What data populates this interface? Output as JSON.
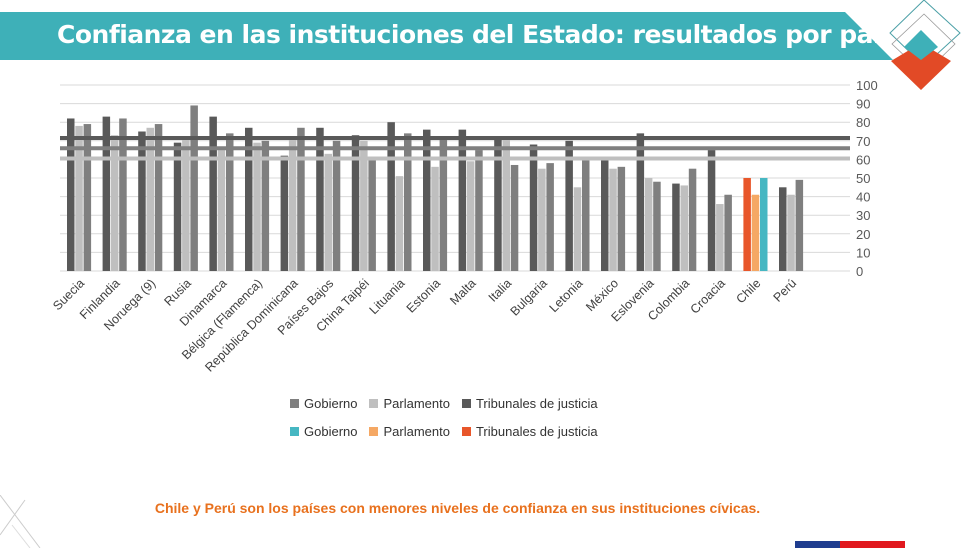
{
  "header": {
    "title": "Confianza en las instituciones del Estado: resultados por país (%)"
  },
  "note": "Chile y Perú son los países con menores niveles de confianza en sus instituciones cívicas.",
  "colors": {
    "banner": "#3eb0b8",
    "accent_red": "#e24a26",
    "note": "#e8711e",
    "tribunales": "#595959",
    "parlamento": "#bfbfbf",
    "gobierno": "#7f7f7f",
    "chile_tribunales": "#e8562a",
    "chile_parlamento": "#f5a864",
    "chile_gobierno": "#46b7c2"
  },
  "legend": {
    "row1": [
      {
        "label": "Gobierno",
        "color": "#7f7f7f"
      },
      {
        "label": "Parlamento",
        "color": "#bfbfbf"
      },
      {
        "label": "Tribunales de justicia",
        "color": "#595959"
      }
    ],
    "row2": [
      {
        "label": "Gobierno",
        "color": "#46b7c2"
      },
      {
        "label": "Parlamento",
        "color": "#f5a864"
      },
      {
        "label": "Tribunales de justicia",
        "color": "#e8562a"
      }
    ]
  },
  "chart_data": {
    "type": "bar",
    "ylim": [
      0,
      100
    ],
    "yticks": [
      0,
      10,
      20,
      30,
      40,
      50,
      60,
      70,
      80,
      90,
      100
    ],
    "y_axis_position": "right",
    "grid": true,
    "legend_placement": "bottom",
    "categories": [
      "Suecia",
      "Finlandia",
      "Noruega (9)",
      "Rusia",
      "Dinamarca",
      "Bélgica (Flamenca)",
      "República Dominicana",
      "Países Bajos",
      "China Taipéi",
      "Lituania",
      "Estonia",
      "Malta",
      "Italia",
      "Bulgaria",
      "Letonia",
      "México",
      "Eslovenia",
      "Colombia",
      "Croacia",
      "Chile",
      "Perú"
    ],
    "highlight_category": "Chile",
    "series": [
      {
        "name": "Tribunales de justicia",
        "values": [
          82,
          83,
          75,
          69,
          83,
          77,
          62,
          77,
          73,
          80,
          76,
          76,
          72,
          68,
          70,
          60,
          74,
          47,
          65,
          50,
          45
        ]
      },
      {
        "name": "Parlamento",
        "values": [
          78,
          73,
          77,
          72,
          65,
          69,
          72,
          63,
          70,
          51,
          56,
          59,
          72,
          55,
          45,
          55,
          50,
          46,
          36,
          41,
          41
        ]
      },
      {
        "name": "Gobierno",
        "values": [
          79,
          82,
          79,
          89,
          74,
          70,
          77,
          70,
          60,
          74,
          72,
          65,
          57,
          58,
          60,
          56,
          48,
          55,
          41,
          50,
          49
        ]
      }
    ],
    "reference_lines": [
      {
        "series": "Tribunales de justicia",
        "value": 71.5
      },
      {
        "series": "Gobierno",
        "value": 66
      },
      {
        "series": "Parlamento",
        "value": 60.5
      }
    ]
  }
}
